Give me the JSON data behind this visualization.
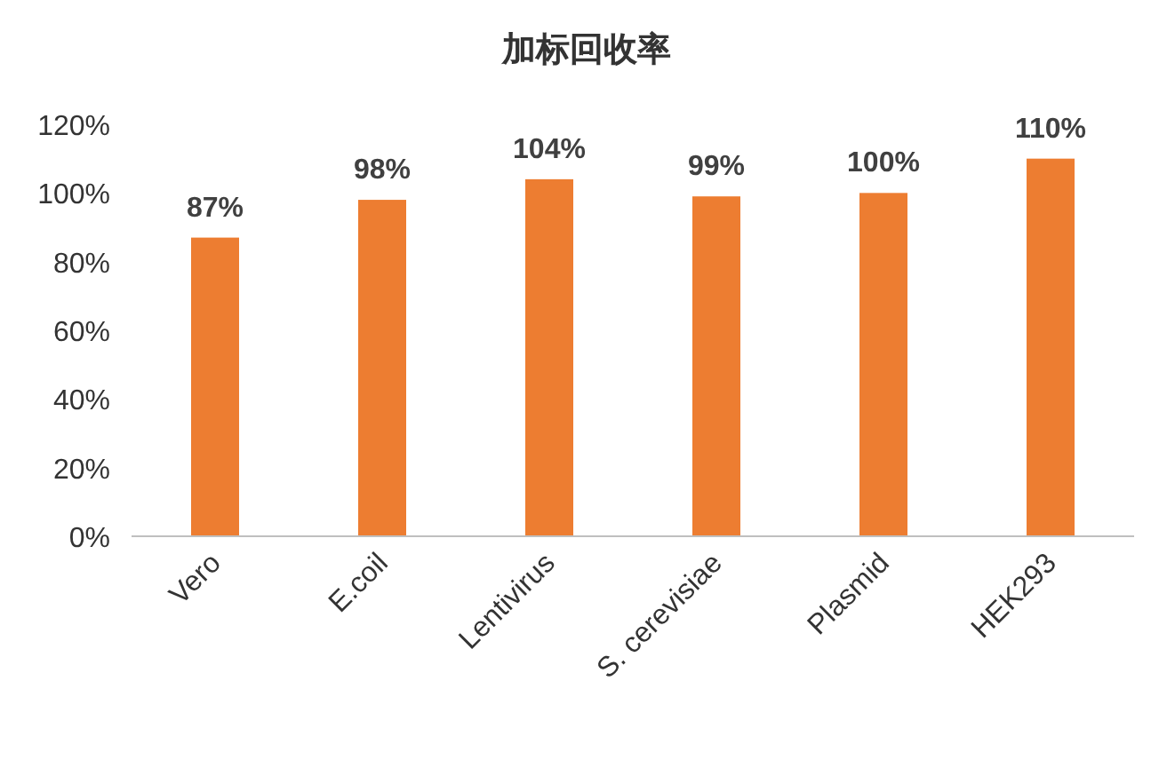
{
  "chart_data": {
    "type": "bar",
    "title": "加标回收率",
    "categories": [
      "Vero",
      "E.coil",
      "Lentivirus",
      "S. cerevisiae",
      "Plasmid",
      "HEK293"
    ],
    "values": [
      87,
      98,
      104,
      99,
      100,
      110
    ],
    "value_labels": [
      "87%",
      "98%",
      "104%",
      "99%",
      "100%",
      "110%"
    ],
    "color": "#ed7d31",
    "ylim": [
      0,
      120
    ],
    "yticks": [
      {
        "value": 0,
        "label": "0%"
      },
      {
        "value": 20,
        "label": "20%"
      },
      {
        "value": 40,
        "label": "40%"
      },
      {
        "value": 60,
        "label": "60%"
      },
      {
        "value": 80,
        "label": "80%"
      },
      {
        "value": 100,
        "label": "100%"
      },
      {
        "value": 120,
        "label": "120%"
      }
    ],
    "grid": false
  }
}
